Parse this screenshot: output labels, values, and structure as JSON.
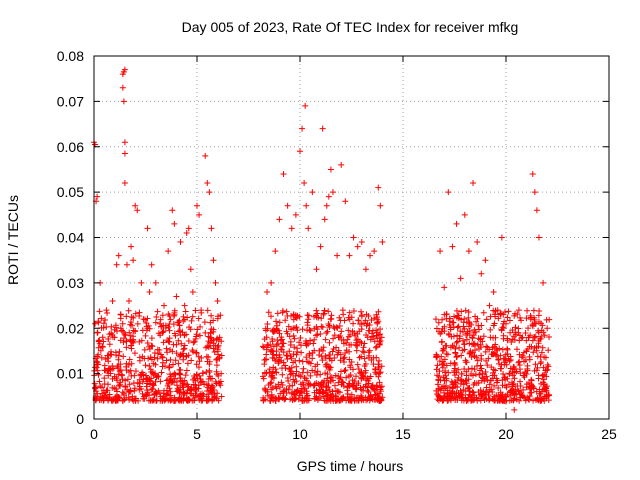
{
  "chart_data": {
    "type": "scatter",
    "title": "Day 005 of 2023, Rate Of TEC Index for receiver mfkg",
    "xlabel": "GPS time / hours",
    "ylabel": "ROTI / TECUs",
    "xlim": [
      0,
      25
    ],
    "ylim": [
      0,
      0.08
    ],
    "x_ticks": [
      0,
      5,
      10,
      15,
      20,
      25
    ],
    "y_ticks": [
      0,
      0.01,
      0.02,
      0.03,
      0.04,
      0.05,
      0.06,
      0.07,
      0.08
    ],
    "x_tick_labels": [
      "0",
      "5",
      "10",
      "15",
      "20",
      "25"
    ],
    "y_tick_labels": [
      "0",
      "0.01",
      "0.02",
      "0.03",
      "0.04",
      "0.05",
      "0.06",
      "0.07",
      "0.08"
    ],
    "grid": true,
    "marker": "+",
    "color": "#ff0000",
    "series": [
      {
        "values": [
          [
            0.0,
            0.061
          ],
          [
            0.05,
            0.0605
          ],
          [
            0.1,
            0.048
          ],
          [
            0.15,
            0.049
          ],
          [
            0.05,
            0.021
          ],
          [
            0.1,
            0.007
          ],
          [
            0.2,
            0.012
          ],
          [
            0.3,
            0.03
          ],
          [
            0.4,
            0.016
          ],
          [
            0.5,
            0.009
          ],
          [
            0.6,
            0.024
          ],
          [
            0.7,
            0.014
          ],
          [
            0.8,
            0.011
          ],
          [
            0.9,
            0.026
          ],
          [
            1.0,
            0.018
          ],
          [
            1.1,
            0.034
          ],
          [
            1.2,
            0.036
          ],
          [
            1.3,
            0.02
          ],
          [
            1.4,
            0.076
          ],
          [
            1.45,
            0.0765
          ],
          [
            1.5,
            0.077
          ],
          [
            1.4,
            0.073
          ],
          [
            1.45,
            0.07
          ],
          [
            1.5,
            0.061
          ],
          [
            1.5,
            0.0585
          ],
          [
            1.5,
            0.052
          ],
          [
            1.6,
            0.034
          ],
          [
            1.7,
            0.026
          ],
          [
            1.8,
            0.038
          ],
          [
            1.9,
            0.035
          ],
          [
            2.0,
            0.047
          ],
          [
            2.1,
            0.046
          ],
          [
            2.2,
            0.017
          ],
          [
            2.3,
            0.03
          ],
          [
            2.4,
            0.022
          ],
          [
            2.6,
            0.042
          ],
          [
            2.7,
            0.028
          ],
          [
            2.8,
            0.034
          ],
          [
            3.0,
            0.03
          ],
          [
            3.2,
            0.021
          ],
          [
            3.4,
            0.025
          ],
          [
            3.6,
            0.037
          ],
          [
            3.8,
            0.046
          ],
          [
            3.9,
            0.043
          ],
          [
            4.0,
            0.027
          ],
          [
            4.2,
            0.039
          ],
          [
            4.4,
            0.025
          ],
          [
            4.5,
            0.041
          ],
          [
            4.6,
            0.042
          ],
          [
            4.7,
            0.033
          ],
          [
            4.8,
            0.028
          ],
          [
            5.0,
            0.047
          ],
          [
            5.1,
            0.045
          ],
          [
            5.2,
            0.024
          ],
          [
            5.4,
            0.058
          ],
          [
            5.5,
            0.052
          ],
          [
            5.6,
            0.05
          ],
          [
            5.7,
            0.042
          ],
          [
            5.8,
            0.035
          ],
          [
            5.9,
            0.03
          ],
          [
            6.0,
            0.026
          ],
          [
            6.1,
            0.018
          ],
          [
            6.2,
            0.014
          ],
          [
            8.2,
            0.016
          ],
          [
            8.4,
            0.028
          ],
          [
            8.6,
            0.03
          ],
          [
            8.8,
            0.037
          ],
          [
            9.0,
            0.044
          ],
          [
            9.2,
            0.054
          ],
          [
            9.4,
            0.047
          ],
          [
            9.6,
            0.042
          ],
          [
            9.8,
            0.045
          ],
          [
            10.0,
            0.059
          ],
          [
            10.1,
            0.064
          ],
          [
            10.2,
            0.052
          ],
          [
            10.25,
            0.069
          ],
          [
            10.3,
            0.047
          ],
          [
            10.4,
            0.042
          ],
          [
            10.6,
            0.05
          ],
          [
            10.8,
            0.033
          ],
          [
            11.0,
            0.038
          ],
          [
            11.1,
            0.064
          ],
          [
            11.2,
            0.044
          ],
          [
            11.3,
            0.047
          ],
          [
            11.4,
            0.049
          ],
          [
            11.5,
            0.055
          ],
          [
            11.6,
            0.05
          ],
          [
            11.8,
            0.036
          ],
          [
            12.0,
            0.056
          ],
          [
            12.2,
            0.048
          ],
          [
            12.4,
            0.036
          ],
          [
            12.6,
            0.04
          ],
          [
            12.8,
            0.038
          ],
          [
            13.0,
            0.039
          ],
          [
            13.2,
            0.033
          ],
          [
            13.4,
            0.036
          ],
          [
            13.6,
            0.037
          ],
          [
            13.8,
            0.051
          ],
          [
            13.9,
            0.047
          ],
          [
            14.0,
            0.039
          ],
          [
            16.6,
            0.022
          ],
          [
            16.8,
            0.037
          ],
          [
            17.0,
            0.029
          ],
          [
            17.2,
            0.05
          ],
          [
            17.4,
            0.038
          ],
          [
            17.6,
            0.043
          ],
          [
            17.8,
            0.031
          ],
          [
            18.0,
            0.045
          ],
          [
            18.2,
            0.037
          ],
          [
            18.4,
            0.052
          ],
          [
            18.6,
            0.039
          ],
          [
            18.8,
            0.032
          ],
          [
            19.0,
            0.035
          ],
          [
            19.2,
            0.025
          ],
          [
            19.4,
            0.028
          ],
          [
            19.6,
            0.024
          ],
          [
            19.8,
            0.04
          ],
          [
            20.0,
            0.021
          ],
          [
            20.2,
            0.019
          ],
          [
            20.4,
            0.002
          ],
          [
            20.6,
            0.019
          ],
          [
            20.8,
            0.018
          ],
          [
            21.0,
            0.015
          ],
          [
            21.2,
            0.022
          ],
          [
            21.3,
            0.054
          ],
          [
            21.4,
            0.05
          ],
          [
            21.5,
            0.046
          ],
          [
            21.6,
            0.04
          ],
          [
            21.8,
            0.03
          ],
          [
            22.0,
            0.02
          ]
        ]
      }
    ]
  }
}
